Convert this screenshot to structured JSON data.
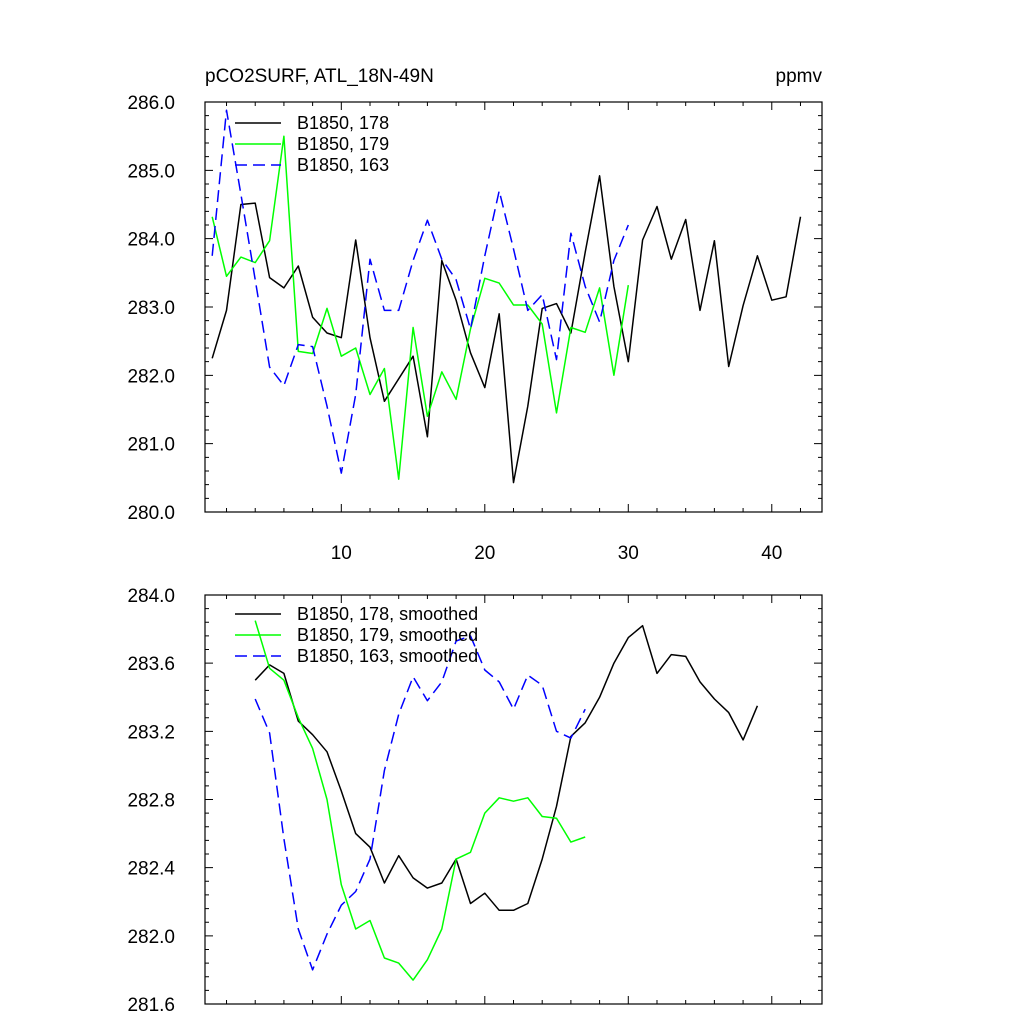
{
  "chart_data": [
    {
      "type": "line",
      "title": "pCO2SURF, ATL_18N-49N",
      "units": "ppmv",
      "xlim": [
        0.5,
        43.5
      ],
      "ylim": [
        280.0,
        286.0
      ],
      "xticks": [
        10,
        20,
        30,
        40
      ],
      "xtick_labels": [
        "10",
        "20",
        "30",
        "40"
      ],
      "yticks": [
        280.0,
        281.0,
        282.0,
        283.0,
        284.0,
        285.0,
        286.0
      ],
      "ytick_labels": [
        "280.0",
        "281.0",
        "282.0",
        "283.0",
        "284.0",
        "285.0",
        "286.0"
      ],
      "legend_position": "top-left",
      "series": [
        {
          "name": "B1850, 178",
          "color": "#000000",
          "dash": "solid",
          "x": [
            1,
            2,
            3,
            4,
            5,
            6,
            7,
            8,
            9,
            10,
            11,
            12,
            13,
            14,
            15,
            16,
            17,
            18,
            19,
            20,
            21,
            22,
            23,
            24,
            25,
            26,
            27,
            28,
            29,
            30,
            31,
            32,
            33,
            34,
            35,
            36,
            37,
            38,
            39,
            40,
            41,
            42
          ],
          "y": [
            282.25,
            282.95,
            284.5,
            284.52,
            283.43,
            283.28,
            283.6,
            282.85,
            282.62,
            282.55,
            283.98,
            282.55,
            281.62,
            281.95,
            282.28,
            281.1,
            283.68,
            283.1,
            282.33,
            281.82,
            282.9,
            280.43,
            281.55,
            282.98,
            283.05,
            282.62,
            283.8,
            284.92,
            283.3,
            282.2,
            283.98,
            284.47,
            283.7,
            284.28,
            282.95,
            283.97,
            282.13,
            283.02,
            283.75,
            283.1,
            283.15,
            284.32
          ]
        },
        {
          "name": "B1850, 179",
          "color": "#00ff00",
          "dash": "solid",
          "x": [
            1,
            2,
            3,
            4,
            5,
            6,
            7,
            8,
            9,
            10,
            11,
            12,
            13,
            14,
            15,
            16,
            17,
            18,
            19,
            20,
            21,
            22,
            23,
            24,
            25,
            26,
            27,
            28,
            29,
            30
          ],
          "y": [
            284.32,
            283.45,
            283.73,
            283.65,
            283.97,
            285.5,
            282.35,
            282.32,
            282.98,
            282.28,
            282.4,
            281.72,
            282.1,
            280.48,
            282.7,
            281.4,
            282.05,
            281.65,
            282.68,
            283.42,
            283.35,
            283.03,
            283.03,
            282.75,
            281.45,
            282.7,
            282.63,
            283.28,
            282.0,
            283.32
          ]
        },
        {
          "name": "B1850, 163",
          "color": "#0000ff",
          "dash": "dashed",
          "x": [
            1,
            2,
            3,
            4,
            5,
            6,
            7,
            8,
            9,
            10,
            11,
            12,
            13,
            14,
            15,
            16,
            17,
            18,
            19,
            20,
            21,
            22,
            23,
            24,
            25,
            26,
            27,
            28,
            29,
            30
          ],
          "y": [
            283.75,
            285.88,
            284.65,
            283.4,
            282.12,
            281.85,
            282.45,
            282.42,
            281.55,
            280.57,
            281.72,
            283.7,
            282.95,
            282.95,
            283.68,
            284.27,
            283.7,
            283.4,
            282.68,
            283.75,
            284.7,
            283.85,
            282.95,
            283.18,
            282.23,
            284.08,
            283.3,
            282.78,
            283.68,
            284.2
          ]
        }
      ]
    },
    {
      "type": "line",
      "title": "",
      "xlim": [
        0.5,
        43.5
      ],
      "ylim": [
        281.6,
        284.0
      ],
      "xticks": [
        10,
        20,
        30,
        40
      ],
      "xtick_labels": [],
      "yticks": [
        281.6,
        282.0,
        282.4,
        282.8,
        283.2,
        283.6,
        284.0
      ],
      "ytick_labels": [
        "281.6",
        "282.0",
        "282.4",
        "282.8",
        "283.2",
        "283.6",
        "284.0"
      ],
      "legend_position": "top-left",
      "series": [
        {
          "name": "B1850, 178, smoothed",
          "color": "#000000",
          "dash": "solid",
          "x": [
            4,
            5,
            6,
            7,
            8,
            9,
            10,
            11,
            12,
            13,
            14,
            15,
            16,
            17,
            18,
            19,
            20,
            21,
            22,
            23,
            24,
            25,
            26,
            27,
            28,
            29,
            30,
            31,
            32,
            33,
            34,
            35,
            36,
            37,
            38,
            39
          ],
          "y": [
            283.5,
            283.59,
            283.54,
            283.26,
            283.18,
            283.08,
            282.85,
            282.6,
            282.52,
            282.31,
            282.47,
            282.34,
            282.28,
            282.31,
            282.45,
            282.19,
            282.25,
            282.15,
            282.15,
            282.19,
            282.45,
            282.76,
            283.17,
            283.25,
            283.4,
            283.6,
            283.75,
            283.82,
            283.54,
            283.65,
            283.64,
            283.49,
            283.39,
            283.31,
            283.15,
            283.35
          ]
        },
        {
          "name": "B1850, 179, smoothed",
          "color": "#00ff00",
          "dash": "solid",
          "x": [
            4,
            5,
            6,
            7,
            8,
            9,
            10,
            11,
            12,
            13,
            14,
            15,
            16,
            17,
            18,
            19,
            20,
            21,
            22,
            23,
            24,
            25,
            26,
            27
          ],
          "y": [
            283.85,
            283.57,
            283.5,
            283.28,
            283.1,
            282.8,
            282.3,
            282.04,
            282.09,
            281.87,
            281.84,
            281.74,
            281.86,
            282.04,
            282.45,
            282.49,
            282.72,
            282.81,
            282.79,
            282.81,
            282.7,
            282.69,
            282.55,
            282.58
          ]
        },
        {
          "name": "B1850, 163, smoothed",
          "color": "#0000ff",
          "dash": "dashed",
          "x": [
            4,
            5,
            6,
            7,
            8,
            9,
            10,
            11,
            12,
            13,
            14,
            15,
            16,
            17,
            18,
            19,
            20,
            21,
            22,
            23,
            24,
            25,
            26,
            27
          ],
          "y": [
            283.39,
            283.19,
            282.57,
            282.04,
            281.8,
            282.01,
            282.18,
            282.26,
            282.45,
            282.97,
            283.3,
            283.52,
            283.38,
            283.49,
            283.73,
            283.76,
            283.56,
            283.49,
            283.33,
            283.53,
            283.47,
            283.2,
            283.16,
            283.33
          ]
        }
      ]
    }
  ]
}
